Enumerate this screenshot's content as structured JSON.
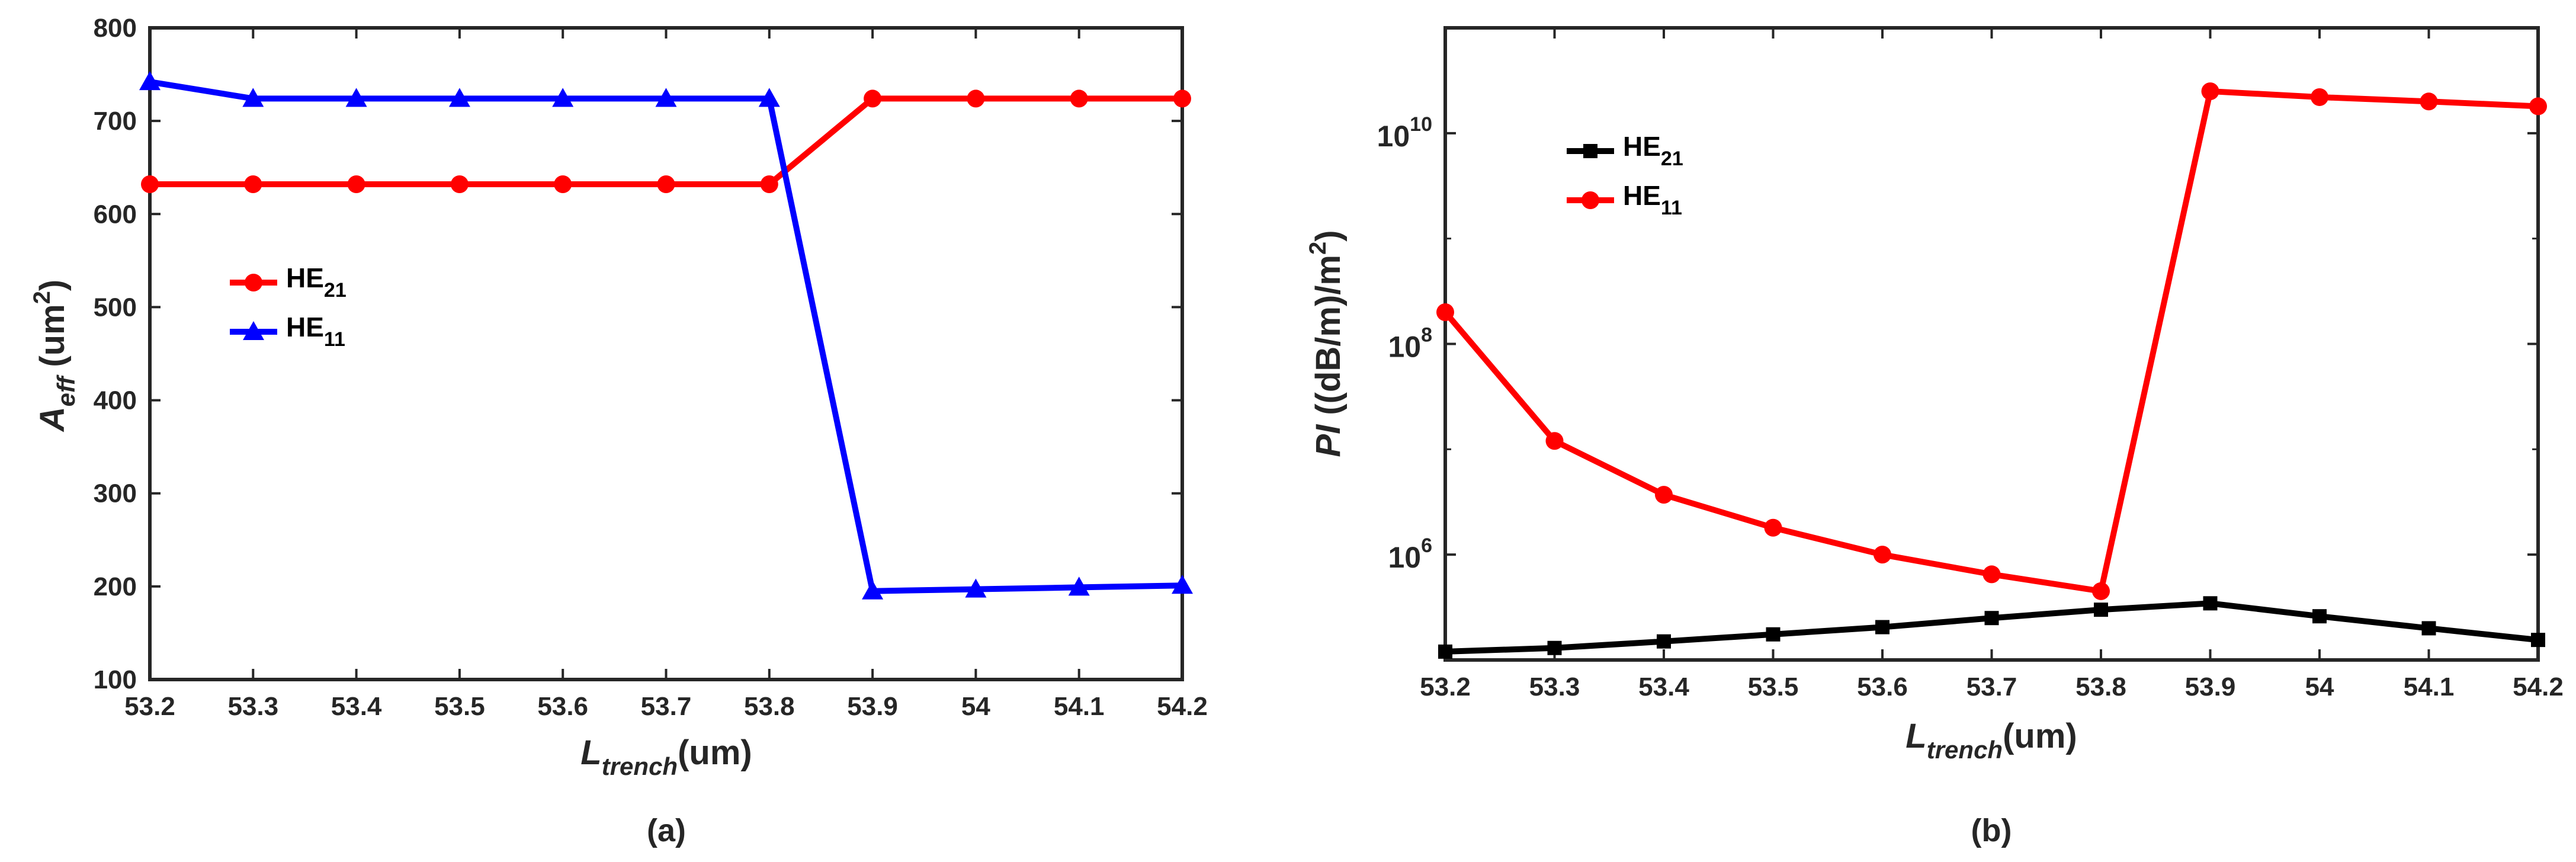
{
  "chart_data": [
    {
      "type": "line",
      "panel": "a",
      "caption": "(a)",
      "x": [
        53.2,
        53.3,
        53.4,
        53.5,
        53.6,
        53.7,
        53.8,
        53.9,
        54.0,
        54.1,
        54.2
      ],
      "xticklabels": [
        "53.2",
        "53.3",
        "53.4",
        "53.5",
        "53.6",
        "53.7",
        "53.8",
        "53.9",
        "54",
        "54.1",
        "54.2"
      ],
      "xlim": [
        53.2,
        54.2
      ],
      "ylim": [
        100,
        800
      ],
      "yticks": [
        100,
        200,
        300,
        400,
        500,
        600,
        700,
        800
      ],
      "yticklabels": [
        "100",
        "200",
        "300",
        "400",
        "500",
        "600",
        "700",
        "800"
      ],
      "xlabel": {
        "main": "L",
        "sub": "trench",
        "unit": "(um)"
      },
      "ylabel": {
        "main": "A",
        "sub": "eff",
        "unit": " (um",
        "sup": "2",
        "close": ")"
      },
      "legend_position": "center-left",
      "series": [
        {
          "name": "HE",
          "sub": "21",
          "color": "#ff0000",
          "marker": "circle",
          "values": [
            632,
            632,
            632,
            632,
            632,
            632,
            632,
            724,
            724,
            724,
            724
          ]
        },
        {
          "name": "HE",
          "sub": "11",
          "color": "#0000ff",
          "marker": "triangle",
          "values": [
            742,
            724,
            724,
            724,
            724,
            724,
            724,
            195,
            197,
            199,
            201
          ]
        }
      ]
    },
    {
      "type": "line",
      "panel": "b",
      "caption": "(b)",
      "yscale": "log",
      "x": [
        53.2,
        53.3,
        53.4,
        53.5,
        53.6,
        53.7,
        53.8,
        53.9,
        54.0,
        54.1,
        54.2
      ],
      "xticklabels": [
        "53.2",
        "53.3",
        "53.4",
        "53.5",
        "53.6",
        "53.7",
        "53.8",
        "53.9",
        "54",
        "54.1",
        "54.2"
      ],
      "xlim": [
        53.2,
        54.2
      ],
      "ylim": [
        100000,
        100000000000
      ],
      "yticks": [
        1000000,
        100000000,
        10000000000
      ],
      "yticklabels": [
        {
          "base": "10",
          "exp": "6"
        },
        {
          "base": "10",
          "exp": "8"
        },
        {
          "base": "10",
          "exp": "10"
        }
      ],
      "xlabel": {
        "main": "L",
        "sub": "trench",
        "unit": "(um)"
      },
      "ylabel": {
        "main": "PI",
        "unit": " ((dB/m)/m",
        "sup": "2",
        "close": ")"
      },
      "legend_position": "top-left",
      "series": [
        {
          "name": "HE",
          "sub": "21",
          "color": "#000000",
          "marker": "square",
          "values": [
            120000,
            130000,
            150000,
            175000,
            205000,
            250000,
            300000,
            345000,
            260000,
            200000,
            155000
          ]
        },
        {
          "name": "HE",
          "sub": "11",
          "color": "#ff0000",
          "marker": "circle",
          "values": [
            200000000,
            12000000,
            3700000,
            1800000,
            1000000,
            650000,
            450000,
            25000000000,
            22000000000,
            20000000000,
            18000000000
          ]
        }
      ]
    }
  ]
}
